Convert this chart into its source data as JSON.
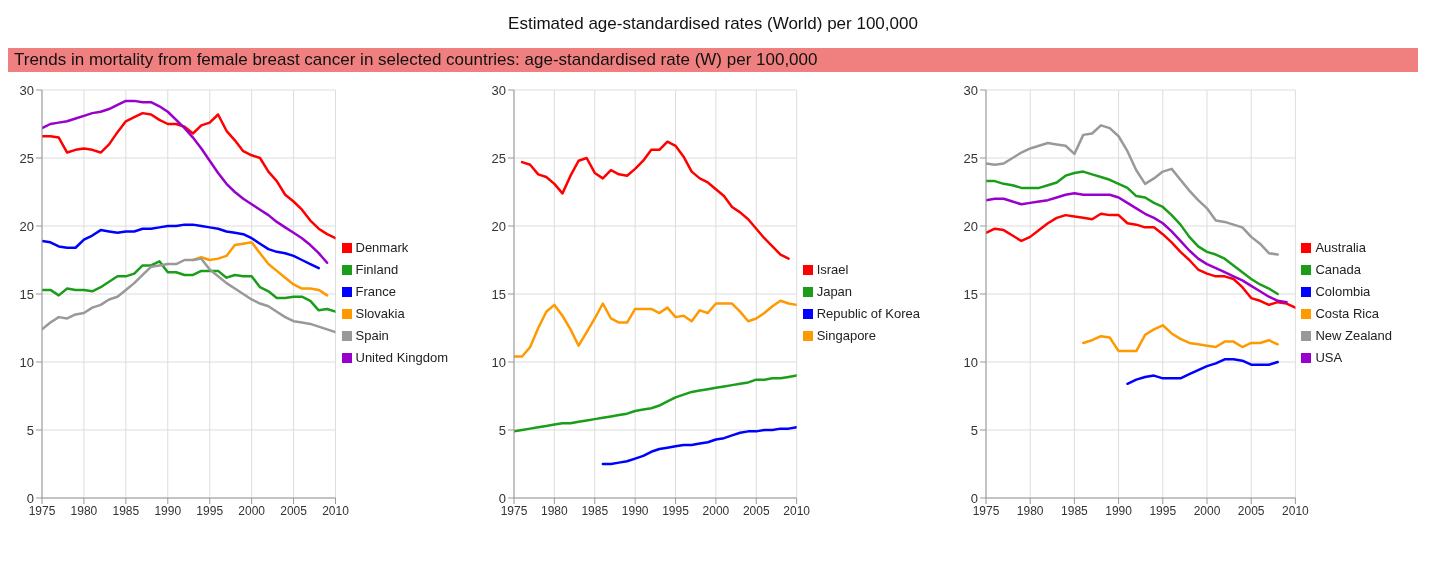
{
  "chart_data": [
    {
      "type": "line",
      "subtitle": "Trends in mortality from female breast cancer in selected countries: age-standardised rate (W) per 100,000",
      "x": [
        1975,
        1976,
        1977,
        1978,
        1979,
        1980,
        1981,
        1982,
        1983,
        1984,
        1985,
        1986,
        1987,
        1988,
        1989,
        1990,
        1991,
        1992,
        1993,
        1994,
        1995,
        1996,
        1997,
        1998,
        1999,
        2000,
        2001,
        2002,
        2003,
        2004,
        2005,
        2006,
        2007,
        2008,
        2009,
        2010
      ],
      "xlim": [
        1975,
        2010
      ],
      "xticks": [
        1975,
        1980,
        1985,
        1990,
        1995,
        2000,
        2005,
        2010
      ],
      "ylim": [
        0,
        30
      ],
      "yticks": [
        0,
        5,
        10,
        15,
        20,
        25,
        30
      ],
      "grid": true,
      "legend": "right",
      "marker": "none",
      "line_style": "solid",
      "series": [
        {
          "name": "Denmark",
          "color": "#ff0000",
          "values": [
            26.6,
            26.6,
            26.5,
            25.4,
            25.6,
            25.7,
            25.6,
            25.4,
            26.0,
            26.9,
            27.7,
            28.0,
            28.3,
            28.2,
            27.8,
            27.5,
            27.5,
            27.3,
            26.8,
            27.4,
            27.6,
            28.2,
            27.0,
            26.3,
            25.5,
            25.2,
            25.0,
            24.0,
            23.3,
            22.3,
            21.8,
            21.2,
            20.4,
            19.8,
            19.4,
            19.1
          ]
        },
        {
          "name": "Finland",
          "color": "#1a9e1a",
          "values": [
            15.3,
            15.3,
            14.9,
            15.4,
            15.3,
            15.3,
            15.2,
            15.5,
            15.9,
            16.3,
            16.3,
            16.5,
            17.1,
            17.1,
            17.4,
            16.6,
            16.6,
            16.4,
            16.4,
            16.7,
            16.7,
            16.7,
            16.2,
            16.4,
            16.3,
            16.3,
            15.5,
            15.2,
            14.7,
            14.7,
            14.8,
            14.8,
            14.5,
            13.8,
            13.9,
            13.7
          ]
        },
        {
          "name": "France",
          "color": "#0000ff",
          "values": [
            18.9,
            18.8,
            18.5,
            18.4,
            18.4,
            19.0,
            19.3,
            19.7,
            19.6,
            19.5,
            19.6,
            19.6,
            19.8,
            19.8,
            19.9,
            20.0,
            20.0,
            20.1,
            20.1,
            20.0,
            19.9,
            19.8,
            19.6,
            19.5,
            19.4,
            19.1,
            18.7,
            18.3,
            18.1,
            18.0,
            17.8,
            17.5,
            17.2,
            16.9,
            null,
            null
          ]
        },
        {
          "name": "Slovakia",
          "color": "#ff9900",
          "values": [
            null,
            null,
            null,
            null,
            null,
            null,
            null,
            null,
            null,
            null,
            null,
            null,
            null,
            null,
            null,
            null,
            null,
            null,
            17.5,
            17.7,
            17.5,
            17.6,
            17.8,
            18.6,
            18.7,
            18.8,
            18.0,
            17.2,
            16.7,
            16.2,
            15.7,
            15.4,
            15.4,
            15.3,
            14.9,
            null
          ]
        },
        {
          "name": "Spain",
          "color": "#999999",
          "values": [
            12.4,
            12.9,
            13.3,
            13.2,
            13.5,
            13.6,
            14.0,
            14.2,
            14.6,
            14.8,
            15.3,
            15.8,
            16.4,
            17.0,
            17.1,
            17.2,
            17.2,
            17.5,
            17.5,
            17.6,
            16.8,
            16.3,
            15.8,
            15.4,
            15.0,
            14.6,
            14.3,
            14.1,
            13.7,
            13.3,
            13.0,
            12.9,
            12.8,
            12.6,
            12.4,
            12.2
          ]
        },
        {
          "name": "United Kingdom",
          "color": "#9900cc",
          "values": [
            27.2,
            27.5,
            27.6,
            27.7,
            27.9,
            28.1,
            28.3,
            28.4,
            28.6,
            28.9,
            29.2,
            29.2,
            29.1,
            29.1,
            28.8,
            28.4,
            27.8,
            27.2,
            26.5,
            25.7,
            24.8,
            23.9,
            23.1,
            22.5,
            22.0,
            21.6,
            21.2,
            20.8,
            20.3,
            19.9,
            19.5,
            19.1,
            18.6,
            18.0,
            17.3,
            null
          ]
        }
      ]
    },
    {
      "type": "line",
      "title": "Estimated age-standardised rates (World) per 100,000",
      "x": [
        1975,
        1976,
        1977,
        1978,
        1979,
        1980,
        1981,
        1982,
        1983,
        1984,
        1985,
        1986,
        1987,
        1988,
        1989,
        1990,
        1991,
        1992,
        1993,
        1994,
        1995,
        1996,
        1997,
        1998,
        1999,
        2000,
        2001,
        2002,
        2003,
        2004,
        2005,
        2006,
        2007,
        2008,
        2009,
        2010
      ],
      "xlim": [
        1975,
        2010
      ],
      "xticks": [
        1975,
        1980,
        1985,
        1990,
        1995,
        2000,
        2005,
        2010
      ],
      "ylim": [
        0,
        30
      ],
      "yticks": [
        0,
        5,
        10,
        15,
        20,
        25,
        30
      ],
      "grid": true,
      "legend": "right",
      "marker": "none",
      "line_style": "solid",
      "series": [
        {
          "name": "Israel",
          "color": "#ff0000",
          "values": [
            null,
            24.7,
            24.5,
            23.8,
            23.6,
            23.1,
            22.4,
            23.7,
            24.8,
            25.0,
            23.9,
            23.5,
            24.1,
            23.8,
            23.7,
            24.2,
            24.8,
            25.6,
            25.6,
            26.2,
            25.9,
            25.1,
            24.0,
            23.5,
            23.2,
            22.7,
            22.2,
            21.4,
            21.0,
            20.5,
            19.8,
            19.1,
            18.5,
            17.9,
            17.6,
            null
          ]
        },
        {
          "name": "Japan",
          "color": "#1a9e1a",
          "values": [
            4.9,
            5.0,
            5.1,
            5.2,
            5.3,
            5.4,
            5.5,
            5.5,
            5.6,
            5.7,
            5.8,
            5.9,
            6.0,
            6.1,
            6.2,
            6.4,
            6.5,
            6.6,
            6.8,
            7.1,
            7.4,
            7.6,
            7.8,
            7.9,
            8.0,
            8.1,
            8.2,
            8.3,
            8.4,
            8.5,
            8.7,
            8.7,
            8.8,
            8.8,
            8.9,
            9.0
          ]
        },
        {
          "name": "Republic of Korea",
          "color": "#0000ff",
          "values": [
            null,
            null,
            null,
            null,
            null,
            null,
            null,
            null,
            null,
            null,
            null,
            2.5,
            2.5,
            2.6,
            2.7,
            2.9,
            3.1,
            3.4,
            3.6,
            3.7,
            3.8,
            3.9,
            3.9,
            4.0,
            4.1,
            4.3,
            4.4,
            4.6,
            4.8,
            4.9,
            4.9,
            5.0,
            5.0,
            5.1,
            5.1,
            5.2
          ]
        },
        {
          "name": "Singapore",
          "color": "#ff9900",
          "values": [
            10.4,
            10.4,
            11.1,
            12.5,
            13.7,
            14.2,
            13.4,
            12.4,
            11.2,
            12.2,
            13.2,
            14.3,
            13.2,
            12.9,
            12.9,
            13.9,
            13.9,
            13.9,
            13.6,
            14.0,
            13.3,
            13.4,
            13.0,
            13.8,
            13.6,
            14.3,
            14.3,
            14.3,
            13.7,
            13.0,
            13.2,
            13.6,
            14.1,
            14.5,
            14.3,
            14.2
          ]
        }
      ]
    },
    {
      "type": "line",
      "x": [
        1975,
        1976,
        1977,
        1978,
        1979,
        1980,
        1981,
        1982,
        1983,
        1984,
        1985,
        1986,
        1987,
        1988,
        1989,
        1990,
        1991,
        1992,
        1993,
        1994,
        1995,
        1996,
        1997,
        1998,
        1999,
        2000,
        2001,
        2002,
        2003,
        2004,
        2005,
        2006,
        2007,
        2008,
        2009,
        2010
      ],
      "xlim": [
        1975,
        2010
      ],
      "xticks": [
        1975,
        1980,
        1985,
        1990,
        1995,
        2000,
        2005,
        2010
      ],
      "ylim": [
        0,
        30
      ],
      "yticks": [
        0,
        5,
        10,
        15,
        20,
        25,
        30
      ],
      "grid": true,
      "legend": "right",
      "marker": "none",
      "line_style": "solid",
      "series": [
        {
          "name": "Australia",
          "color": "#ff0000",
          "values": [
            19.5,
            19.8,
            19.7,
            19.3,
            18.9,
            19.2,
            19.7,
            20.2,
            20.6,
            20.8,
            20.7,
            20.6,
            20.5,
            20.9,
            20.8,
            20.8,
            20.2,
            20.1,
            19.9,
            19.9,
            19.4,
            18.8,
            18.1,
            17.5,
            16.8,
            16.5,
            16.3,
            16.3,
            16.1,
            15.5,
            14.7,
            14.5,
            14.2,
            14.4,
            14.3,
            14.0
          ]
        },
        {
          "name": "Canada",
          "color": "#1a9e1a",
          "values": [
            23.3,
            23.3,
            23.1,
            23.0,
            22.8,
            22.8,
            22.8,
            23.0,
            23.2,
            23.7,
            23.9,
            24.0,
            23.8,
            23.6,
            23.4,
            23.1,
            22.8,
            22.2,
            22.1,
            21.7,
            21.4,
            20.8,
            20.1,
            19.2,
            18.5,
            18.1,
            17.9,
            17.6,
            17.1,
            16.6,
            16.1,
            15.7,
            15.4,
            15.0,
            null,
            null
          ]
        },
        {
          "name": "Colombia",
          "color": "#0000ff",
          "values": [
            null,
            null,
            null,
            null,
            null,
            null,
            null,
            null,
            null,
            null,
            null,
            null,
            null,
            null,
            null,
            null,
            8.4,
            8.7,
            8.9,
            9.0,
            8.8,
            8.8,
            8.8,
            9.1,
            9.4,
            9.7,
            9.9,
            10.2,
            10.2,
            10.1,
            9.8,
            9.8,
            9.8,
            10.0,
            null,
            null
          ]
        },
        {
          "name": "Costa Rica",
          "color": "#ff9900",
          "values": [
            null,
            null,
            null,
            null,
            null,
            null,
            null,
            null,
            null,
            null,
            null,
            11.4,
            11.6,
            11.9,
            11.8,
            10.8,
            10.8,
            10.8,
            12.0,
            12.4,
            12.7,
            12.1,
            11.7,
            11.4,
            11.3,
            11.2,
            11.1,
            11.5,
            11.5,
            11.1,
            11.4,
            11.4,
            11.6,
            11.3,
            null,
            null
          ]
        },
        {
          "name": "New Zealand",
          "color": "#999999",
          "values": [
            24.6,
            24.5,
            24.6,
            25.0,
            25.4,
            25.7,
            25.9,
            26.1,
            26.0,
            25.9,
            25.3,
            26.7,
            26.8,
            27.4,
            27.2,
            26.6,
            25.5,
            24.1,
            23.1,
            23.5,
            24.0,
            24.2,
            23.4,
            22.6,
            21.9,
            21.3,
            20.4,
            20.3,
            20.1,
            19.9,
            19.2,
            18.7,
            18.0,
            17.9,
            null,
            null
          ]
        },
        {
          "name": "USA",
          "color": "#9900cc",
          "values": [
            21.9,
            22.0,
            22.0,
            21.8,
            21.6,
            21.7,
            21.8,
            21.9,
            22.1,
            22.3,
            22.4,
            22.3,
            22.3,
            22.3,
            22.3,
            22.1,
            21.7,
            21.3,
            20.9,
            20.6,
            20.2,
            19.6,
            18.9,
            18.2,
            17.6,
            17.2,
            16.9,
            16.6,
            16.3,
            16.0,
            15.6,
            15.2,
            14.8,
            14.5,
            14.4,
            null
          ]
        }
      ]
    }
  ]
}
